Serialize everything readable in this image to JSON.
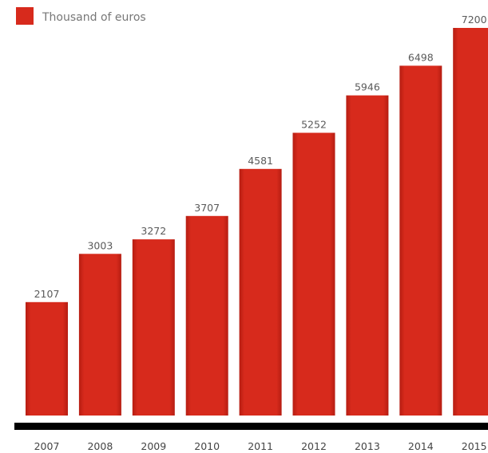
{
  "chart_data": {
    "type": "bar",
    "categories": [
      "2007",
      "2008",
      "2009",
      "2010",
      "2011",
      "2012",
      "2013",
      "2014",
      "2015"
    ],
    "series": [
      {
        "name": "Thousand of euros",
        "values": [
          2107,
          3003,
          3272,
          3707,
          4581,
          5252,
          5946,
          6498,
          7200
        ],
        "color": "#d72a1c"
      }
    ],
    "ylim": [
      0,
      7200
    ],
    "grid": false,
    "legend": "top-left",
    "data_labels": true,
    "colors": {
      "bar": "#d72a1c",
      "axis": "#000000",
      "label_text": "#5a5a5a"
    }
  }
}
